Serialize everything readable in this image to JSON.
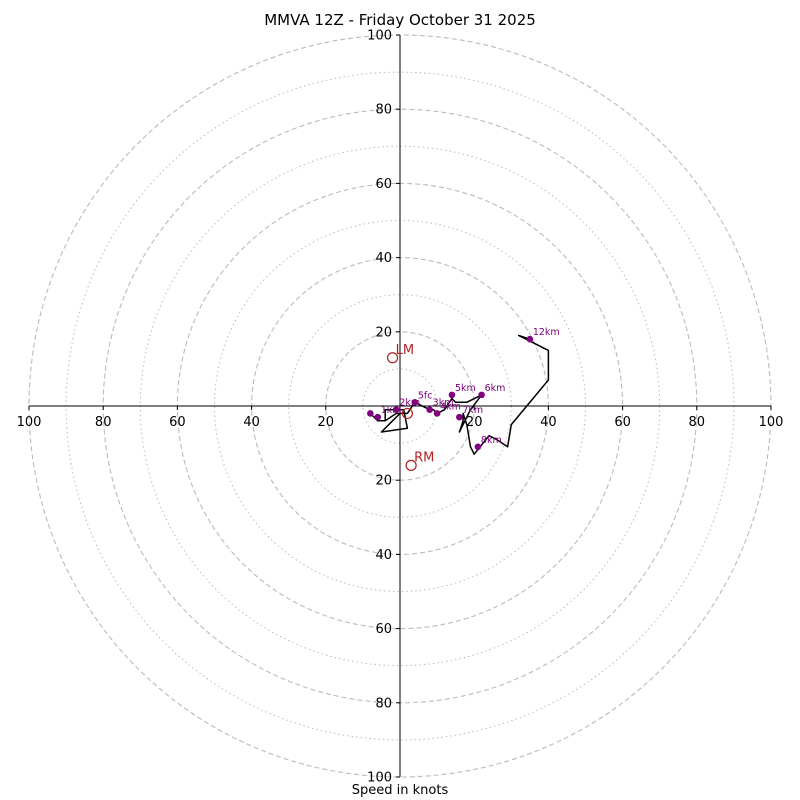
{
  "chart_data": {
    "type": "scatter",
    "title": "MMVA 12Z - Friday October 31 2025",
    "xlabel": "Speed in knots",
    "ylabel": "",
    "xlim": [
      -100,
      100
    ],
    "ylim": [
      -100,
      100
    ],
    "major_rings": [
      20,
      40,
      60,
      80,
      100
    ],
    "minor_rings": [
      10,
      30,
      50,
      70,
      90
    ],
    "x_tick_labels": [
      "100",
      "80",
      "60",
      "40",
      "20",
      "",
      "20",
      "40",
      "60",
      "80",
      "100"
    ],
    "x_tick_values": [
      -100,
      -80,
      -60,
      -40,
      -20,
      0,
      20,
      40,
      60,
      80,
      100
    ],
    "y_tick_labels": [
      "100",
      "80",
      "60",
      "40",
      "20",
      "20",
      "40",
      "60",
      "80",
      "100"
    ],
    "y_tick_values": [
      100,
      80,
      60,
      40,
      20,
      -20,
      -40,
      -60,
      -80,
      -100
    ],
    "colors": {
      "trace": "#000000",
      "height_marker": "#800080",
      "height_label": "#800080",
      "storm_motion": "#b22222",
      "ring": "#bbbbbb",
      "axis": "#000000"
    },
    "trace": [
      [
        -8,
        -2
      ],
      [
        -6,
        -4
      ],
      [
        -4,
        -4
      ],
      [
        -1,
        -2
      ],
      [
        2,
        -2
      ],
      [
        4,
        1
      ],
      [
        8,
        -1
      ],
      [
        9,
        -1
      ],
      [
        10,
        -2
      ],
      [
        12,
        -1
      ],
      [
        14,
        2
      ],
      [
        15,
        1
      ],
      [
        18,
        1
      ],
      [
        22,
        3
      ],
      [
        19,
        -1
      ],
      [
        17,
        -5
      ],
      [
        16,
        -7
      ],
      [
        17,
        -4
      ],
      [
        17,
        -2
      ],
      [
        18,
        -5
      ],
      [
        19,
        -11
      ],
      [
        20,
        -13
      ],
      [
        24,
        -8
      ],
      [
        26,
        -9
      ],
      [
        29,
        -11
      ],
      [
        30,
        -5
      ],
      [
        40,
        7
      ],
      [
        40,
        15
      ],
      [
        36,
        17
      ],
      [
        32,
        19
      ],
      [
        35,
        18
      ]
    ],
    "low_loop": [
      [
        -4,
        -4
      ],
      [
        -4,
        -1
      ],
      [
        1,
        -1
      ],
      [
        2,
        -6
      ],
      [
        -5,
        -7
      ],
      [
        -2,
        -4
      ],
      [
        0,
        -2
      ]
    ],
    "height_markers": [
      {
        "label": "",
        "x": -8,
        "y": -2
      },
      {
        "label": "1km",
        "x": -6,
        "y": -3
      },
      {
        "label": "2km",
        "x": -1,
        "y": -1
      },
      {
        "label": "3km",
        "x": 8,
        "y": -1
      },
      {
        "label": "4km",
        "x": 10,
        "y": -2
      },
      {
        "label": "5fc",
        "x": 4,
        "y": 1
      },
      {
        "label": "5km",
        "x": 14,
        "y": 3
      },
      {
        "label": "6km",
        "x": 22,
        "y": 3
      },
      {
        "label": "7km",
        "x": 16,
        "y": -3
      },
      {
        "label": "8km",
        "x": 21,
        "y": -11
      },
      {
        "label": "12km",
        "x": 35,
        "y": 18
      }
    ],
    "storm_motion": [
      {
        "label": "LM",
        "x": -2,
        "y": 13
      },
      {
        "label": "RM",
        "x": 3,
        "y": -16
      },
      {
        "label": "",
        "x": 2,
        "y": -2
      }
    ]
  }
}
